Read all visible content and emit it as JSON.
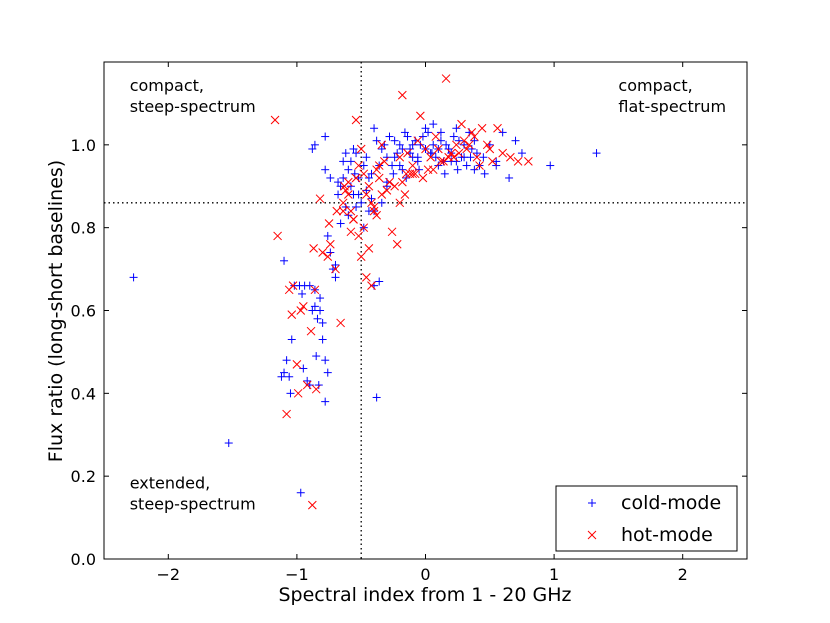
{
  "chart_data": {
    "type": "scatter",
    "xlabel": "Spectral index from 1 - 20 GHz",
    "ylabel": "Flux ratio (long-short baselines)",
    "xlim": [
      -2.5,
      2.5
    ],
    "ylim": [
      0.0,
      1.2
    ],
    "xticks": [
      -2,
      -1,
      0,
      1,
      2
    ],
    "xtick_labels": [
      "−2",
      "−1",
      "0",
      "1",
      "2"
    ],
    "yticks": [
      0.0,
      0.2,
      0.4,
      0.6,
      0.8,
      1.0
    ],
    "ytick_labels": [
      "0.0",
      "0.2",
      "0.4",
      "0.6",
      "0.8",
      "1.0"
    ],
    "reference_lines": {
      "vertical_x": -0.5,
      "horizontal_y": 0.86,
      "style": "dotted"
    },
    "annotations": [
      {
        "lines": [
          "compact,",
          "steep-spectrum"
        ],
        "x": -2.3,
        "y": 1.13
      },
      {
        "lines": [
          "compact,",
          "flat-spectrum"
        ],
        "x": 1.5,
        "y": 1.13
      },
      {
        "lines": [
          "extended,",
          "steep-spectrum"
        ],
        "x": -2.3,
        "y": 0.17
      }
    ],
    "legend": {
      "position": "lower-right"
    },
    "series": [
      {
        "name": "cold-mode",
        "marker": "+",
        "color": "#0000ff",
        "x": [
          -2.27,
          -1.53,
          -0.97,
          -1.1,
          -1.08,
          -1.06,
          -1.04,
          -1.02,
          -0.98,
          -0.96,
          -0.94,
          -0.92,
          -0.9,
          -0.88,
          -0.86,
          -0.84,
          -0.82,
          -0.8,
          -0.78,
          -0.76,
          -0.74,
          -0.72,
          -0.7,
          -0.68,
          -0.66,
          -0.64,
          -0.62,
          -0.6,
          -0.58,
          -0.56,
          -0.55,
          -0.54,
          -0.52,
          -0.5,
          -0.48,
          -0.46,
          -0.44,
          -0.42,
          -0.4,
          -0.38,
          -0.36,
          -0.34,
          -0.32,
          -0.3,
          -0.28,
          -0.26,
          -0.24,
          -0.22,
          -0.2,
          -0.18,
          -0.16,
          -0.14,
          -0.12,
          -0.1,
          -0.08,
          -0.06,
          -0.04,
          -0.02,
          0.0,
          0.02,
          0.04,
          0.06,
          0.08,
          0.1,
          0.12,
          0.14,
          0.16,
          0.18,
          0.2,
          0.22,
          0.24,
          0.26,
          0.28,
          0.3,
          0.32,
          0.34,
          0.36,
          0.38,
          0.4,
          0.45,
          0.5,
          0.55,
          0.6,
          0.7,
          0.75,
          0.97,
          1.33,
          -0.38,
          -0.4,
          -0.36,
          -0.88,
          -0.85,
          -0.83,
          -0.8,
          -0.78,
          -0.74,
          -0.7,
          -0.68,
          -0.62,
          -0.6,
          -0.58,
          -0.52,
          -0.48,
          -0.44,
          -0.42,
          -0.3,
          -0.25,
          -0.2,
          -0.15,
          -0.1,
          -0.05,
          0.05,
          0.1,
          0.15,
          0.2,
          0.25,
          0.35,
          0.42,
          -1.12,
          -1.1,
          -1.05,
          -0.95,
          -0.9,
          -0.86,
          -0.82,
          -0.78,
          -0.76,
          -0.66,
          -0.64,
          -0.56,
          -0.54,
          -0.46,
          -0.4,
          -0.34,
          -0.3,
          -0.24,
          -0.18,
          -0.12,
          -0.06,
          0.0,
          0.06,
          0.12,
          0.18,
          0.24,
          0.3,
          0.38,
          0.46,
          0.55,
          0.65,
          -0.86,
          -0.78
        ],
        "y": [
          0.68,
          0.28,
          0.16,
          0.72,
          0.48,
          0.44,
          0.53,
          0.66,
          0.66,
          0.64,
          0.66,
          0.43,
          0.66,
          0.99,
          0.61,
          0.58,
          0.6,
          0.57,
          0.94,
          0.78,
          0.92,
          0.7,
          0.68,
          0.91,
          0.9,
          0.92,
          0.98,
          0.94,
          0.96,
          0.99,
          0.93,
          0.98,
          0.92,
          0.86,
          0.95,
          0.97,
          0.92,
          0.93,
          1.04,
          1.01,
          0.95,
          0.99,
          1.0,
          0.97,
          1.02,
          0.95,
          1.01,
          0.98,
          1.0,
          0.99,
          1.03,
          1.02,
          0.99,
          1.0,
          1.01,
          0.97,
          1.0,
          1.02,
          0.99,
          1.03,
          0.98,
          1.0,
          0.97,
          0.99,
          1.01,
          0.96,
          1.0,
          0.99,
          0.98,
          1.02,
          0.96,
          1.01,
          0.97,
          1.0,
          0.95,
          1.03,
          0.99,
          1.01,
          0.98,
          0.97,
          1.0,
          0.96,
          1.03,
          1.01,
          0.98,
          0.95,
          0.98,
          0.39,
          0.66,
          0.67,
          0.6,
          0.49,
          0.42,
          0.53,
          0.38,
          0.74,
          0.71,
          0.88,
          0.85,
          0.83,
          0.9,
          0.88,
          0.8,
          0.84,
          0.87,
          0.91,
          0.93,
          0.95,
          0.92,
          0.97,
          0.94,
          0.98,
          0.95,
          0.93,
          0.96,
          0.94,
          0.97,
          0.95,
          0.44,
          0.45,
          0.4,
          0.46,
          0.42,
          0.65,
          0.63,
          0.48,
          0.45,
          0.81,
          0.96,
          0.88,
          0.85,
          0.89,
          0.84,
          0.86,
          0.9,
          0.97,
          0.94,
          0.98,
          0.96,
          1.04,
          1.05,
          1.03,
          0.99,
          1.04,
          0.97,
          0.94,
          0.93,
          0.95,
          0.92,
          1.0,
          1.02
        ]
      },
      {
        "name": "hot-mode",
        "marker": "x",
        "color": "#ff0000",
        "x": [
          -1.17,
          -1.15,
          -1.08,
          -1.06,
          -1.03,
          -1.0,
          -0.97,
          -0.92,
          -0.88,
          -0.87,
          -0.85,
          -0.8,
          -0.76,
          -0.74,
          -0.7,
          -0.66,
          -0.64,
          -0.62,
          -0.6,
          -0.58,
          -0.56,
          -0.54,
          -0.52,
          -0.5,
          -0.48,
          -0.46,
          -0.44,
          -0.42,
          -0.4,
          -0.38,
          -0.36,
          -0.34,
          -0.3,
          -0.26,
          -0.22,
          -0.2,
          -0.18,
          -0.14,
          -0.12,
          -0.1,
          -0.06,
          -0.04,
          0.0,
          0.02,
          0.04,
          0.08,
          0.12,
          0.16,
          0.2,
          0.24,
          0.28,
          0.32,
          0.36,
          0.4,
          0.44,
          0.48,
          0.52,
          0.56,
          0.6,
          0.66,
          0.72,
          0.8,
          -0.64,
          -0.6,
          -0.56,
          -0.52,
          -0.5,
          -0.48,
          -0.44,
          -0.4,
          -0.38,
          -0.34,
          -0.28,
          -0.24,
          -0.2,
          -0.16,
          -0.08,
          -0.02,
          0.06,
          0.14,
          0.22,
          0.3,
          0.38,
          -0.86,
          -1.04,
          -0.99,
          -0.89,
          -0.95,
          -0.82,
          -0.75,
          -0.69,
          -0.63,
          -0.58,
          -0.54,
          -0.46,
          -0.42,
          -0.36,
          -0.32,
          -0.18,
          -0.1,
          0.1,
          0.18,
          0.26,
          0.34,
          0.42,
          0.5,
          -0.15
        ],
        "y": [
          1.06,
          0.78,
          0.35,
          0.65,
          0.66,
          0.47,
          0.6,
          0.42,
          0.13,
          0.75,
          0.41,
          0.74,
          0.73,
          0.76,
          0.7,
          0.57,
          0.84,
          0.89,
          0.91,
          0.79,
          0.82,
          1.06,
          0.95,
          0.99,
          0.93,
          0.88,
          0.9,
          0.66,
          0.85,
          0.94,
          0.92,
          1.0,
          0.89,
          0.79,
          0.76,
          0.97,
          1.12,
          0.98,
          0.93,
          0.95,
          1.01,
          1.07,
          0.99,
          0.94,
          0.97,
          1.02,
          0.96,
          1.16,
          0.98,
          1.0,
          1.05,
          0.99,
          1.03,
          0.97,
          1.04,
          1.0,
          0.96,
          1.04,
          0.98,
          0.97,
          0.96,
          0.96,
          0.86,
          0.88,
          0.82,
          0.78,
          0.73,
          0.8,
          0.75,
          0.84,
          0.83,
          0.88,
          0.91,
          0.9,
          0.86,
          0.88,
          0.93,
          0.92,
          0.94,
          0.96,
          0.97,
          1.01,
          1.02,
          0.65,
          0.59,
          0.4,
          0.55,
          0.61,
          0.87,
          0.81,
          0.84,
          0.9,
          0.84,
          0.92,
          0.68,
          0.86,
          0.95,
          0.96,
          0.91,
          0.93,
          0.99,
          0.97,
          0.98,
          1.0,
          0.95,
          0.99,
          0.93
        ]
      }
    ]
  }
}
